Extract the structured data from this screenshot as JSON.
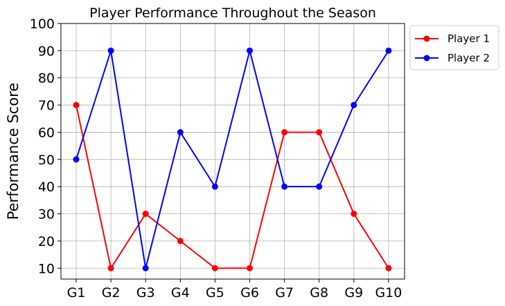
{
  "chart_data": {
    "type": "line",
    "title": "Player Performance Throughout the Season",
    "xlabel": "",
    "ylabel": "Performance Score",
    "categories": [
      "G1",
      "G2",
      "G3",
      "G4",
      "G5",
      "G6",
      "G7",
      "G8",
      "G9",
      "G10"
    ],
    "ylim": [
      6,
      100
    ],
    "yticks": [
      10,
      20,
      30,
      40,
      50,
      60,
      70,
      80,
      90,
      100
    ],
    "grid": true,
    "legend_position": "outside-top-right",
    "series": [
      {
        "name": "Player 1",
        "color": "#ff0000",
        "marker": "circle",
        "values": [
          70,
          10,
          30,
          20,
          10,
          10,
          60,
          60,
          30,
          10
        ]
      },
      {
        "name": "Player 2",
        "color": "#0000ff",
        "marker": "circle",
        "values": [
          50,
          90,
          10,
          60,
          40,
          90,
          40,
          40,
          70,
          90
        ]
      }
    ]
  }
}
